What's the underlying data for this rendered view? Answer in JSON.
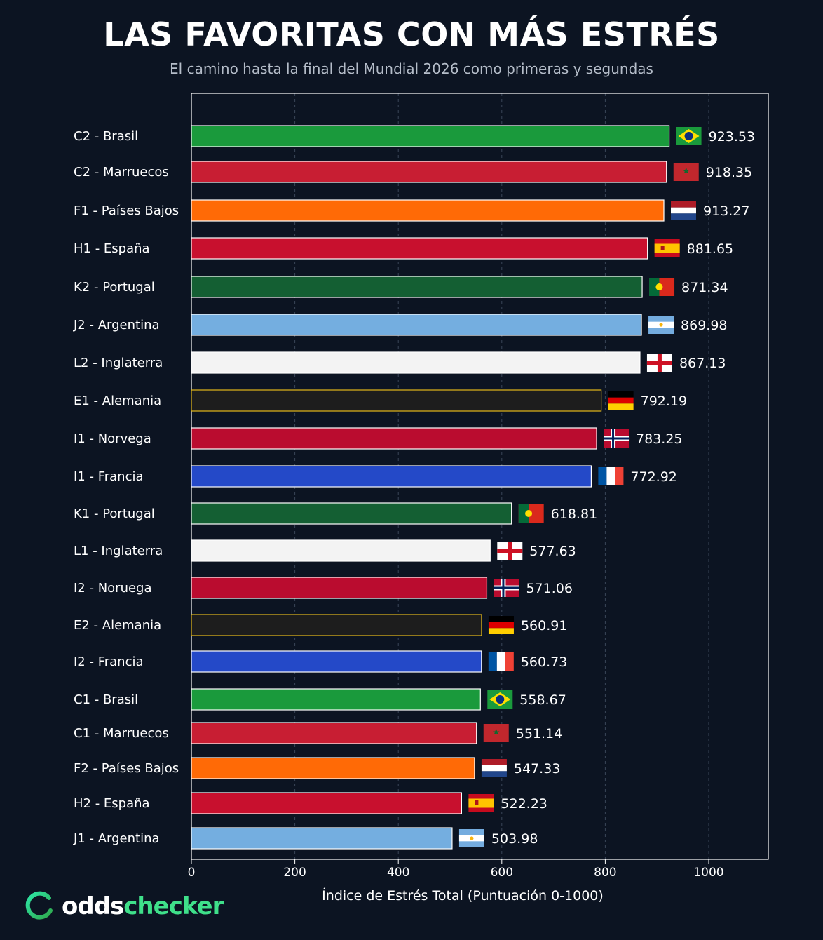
{
  "title": "LAS FAVORITAS CON MÁS ESTRÉS",
  "subtitle": "El camino hasta la final del Mundial 2026 como primeras y segundas",
  "brand": {
    "part1": "odds",
    "part2": "checker"
  },
  "chart_data": {
    "type": "bar",
    "orientation": "horizontal",
    "xlabel": "Índice de Estrés Total (Puntuación 0-1000)",
    "xlim": [
      0,
      1100
    ],
    "xticks": [
      0,
      200,
      400,
      600,
      800,
      1000
    ],
    "grid": "vertical dashed",
    "categories": [
      "C2 - Brasil",
      "C2 - Marruecos",
      "F1 - Países Bajos",
      "H1 - España",
      "K2 - Portugal",
      "J2 - Argentina",
      "L2 - Inglaterra",
      "E1 - Alemania",
      "I1 - Norvega",
      "I1 - Francia",
      "K1 - Portugal",
      "L1 - Inglaterra",
      "I2 - Noruega",
      "E2 - Alemania",
      "I2 - Francia",
      "C1 - Brasil",
      "C1 - Marruecos",
      "F2 - Países Bajos",
      "H2 - España",
      "J1 - Argentina"
    ],
    "values": [
      923.53,
      918.35,
      913.27,
      881.65,
      871.34,
      869.98,
      867.13,
      792.19,
      783.25,
      772.92,
      618.81,
      577.63,
      571.06,
      560.91,
      560.73,
      558.67,
      551.14,
      547.33,
      522.23,
      503.98
    ],
    "value_labels": [
      "923.53",
      "918.35",
      "913.27",
      "881.65",
      "871.34",
      "869.98",
      "867.13",
      "792.19",
      "783.25",
      "772.92",
      "618.81",
      "577.63",
      "571.06",
      "560.91",
      "560.73",
      "558.67",
      "551.14",
      "547.33",
      "522.23",
      "503.98"
    ],
    "flags": [
      "brazil",
      "morocco",
      "netherlands",
      "spain",
      "portugal",
      "argentina",
      "england",
      "germany",
      "norway",
      "france",
      "portugal",
      "england",
      "norway",
      "germany",
      "france",
      "brazil",
      "morocco",
      "netherlands",
      "spain",
      "argentina"
    ],
    "bar_colors": [
      "#1a9a3c",
      "#c81e33",
      "#ff6a06",
      "#c8102e",
      "#145f33",
      "#74aee0",
      "#f3f3f3",
      "#1d1d1d",
      "#ba0c2f",
      "#2449c8",
      "#145f33",
      "#f3f3f3",
      "#ba0c2f",
      "#1d1d1d",
      "#2449c8",
      "#1a9a3c",
      "#c81e33",
      "#ff6a06",
      "#c8102e",
      "#74aee0"
    ],
    "bar_borders": [
      "#ffffff",
      "#ffffff",
      "#ffffff",
      "#ffffff",
      "#ffffff",
      "#ffffff",
      "#ffffff",
      "#e3b81a",
      "#ffffff",
      "#ffffff",
      "#ffffff",
      "#ffffff",
      "#ffffff",
      "#e3b81a",
      "#ffffff",
      "#ffffff",
      "#ffffff",
      "#ffffff",
      "#ffffff",
      "#ffffff"
    ]
  }
}
